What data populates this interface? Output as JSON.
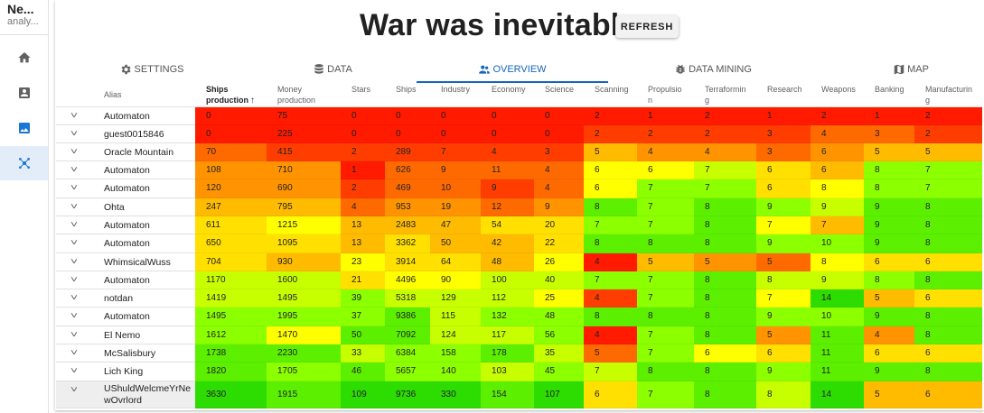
{
  "app": {
    "name": "Ne...",
    "subtitle": "analy..."
  },
  "sidebar": {
    "items": [
      {
        "name": "home",
        "icon": "home-icon",
        "active": false
      },
      {
        "name": "profile",
        "icon": "account-box-icon",
        "active": false
      },
      {
        "name": "gallery",
        "icon": "image-icon",
        "active": false
      },
      {
        "name": "analysis",
        "icon": "hub-icon",
        "active": true
      }
    ]
  },
  "header": {
    "title": "War was inevitable",
    "refresh_label": "REFRESH"
  },
  "tabs": [
    {
      "label": "SETTINGS",
      "icon": "gear-icon",
      "active": false
    },
    {
      "label": "DATA",
      "icon": "database-icon",
      "active": false
    },
    {
      "label": "OVERVIEW",
      "icon": "people-icon",
      "active": true
    },
    {
      "label": "DATA MINING",
      "icon": "bug-icon",
      "active": false
    },
    {
      "label": "MAP",
      "icon": "map-icon",
      "active": false
    }
  ],
  "colors": {
    "accent": "#1565c0",
    "scale": [
      "#ff1a00",
      "#ff3d00",
      "#ff6a00",
      "#ff9400",
      "#ffbb00",
      "#ffe000",
      "#ffff00",
      "#c8ff00",
      "#8cff00",
      "#5cf000",
      "#2ddc00"
    ]
  },
  "table": {
    "alias_header": "Alias",
    "columns": [
      {
        "key": "ships_production",
        "lines": [
          "Ships",
          "production"
        ],
        "sorted": "asc"
      },
      {
        "key": "money_production",
        "lines": [
          "Money",
          "production"
        ]
      },
      {
        "key": "stars",
        "lines": [
          "Stars"
        ]
      },
      {
        "key": "ships",
        "lines": [
          "Ships"
        ]
      },
      {
        "key": "industry",
        "lines": [
          "Industry"
        ]
      },
      {
        "key": "economy",
        "lines": [
          "Economy"
        ]
      },
      {
        "key": "science",
        "lines": [
          "Science"
        ]
      },
      {
        "key": "scanning",
        "lines": [
          "Scanning"
        ]
      },
      {
        "key": "propulsion",
        "lines": [
          "Propulsio",
          "n"
        ]
      },
      {
        "key": "terraforming",
        "lines": [
          "Terraformin",
          "g"
        ]
      },
      {
        "key": "research",
        "lines": [
          "Research"
        ]
      },
      {
        "key": "weapons",
        "lines": [
          "Weapons"
        ]
      },
      {
        "key": "banking",
        "lines": [
          "Banking"
        ]
      },
      {
        "key": "manufacturing",
        "lines": [
          "Manufacturin",
          "g"
        ]
      }
    ],
    "rows": [
      {
        "alias": "Automaton",
        "values": [
          0,
          75,
          0,
          0,
          0,
          0,
          0,
          2,
          1,
          2,
          1,
          2,
          1,
          2
        ]
      },
      {
        "alias": "guest0015846",
        "values": [
          0,
          225,
          0,
          0,
          0,
          0,
          0,
          2,
          2,
          2,
          3,
          4,
          3,
          2
        ]
      },
      {
        "alias": "Oracle Mountain",
        "values": [
          70,
          415,
          2,
          289,
          7,
          4,
          3,
          5,
          4,
          4,
          3,
          6,
          5,
          5
        ]
      },
      {
        "alias": "Automaton",
        "values": [
          108,
          710,
          1,
          626,
          9,
          11,
          4,
          6,
          6,
          7,
          6,
          6,
          8,
          7
        ]
      },
      {
        "alias": "Automaton",
        "values": [
          120,
          690,
          2,
          469,
          10,
          9,
          4,
          6,
          7,
          7,
          6,
          8,
          8,
          7
        ]
      },
      {
        "alias": "Ohta",
        "values": [
          247,
          795,
          4,
          953,
          19,
          12,
          9,
          8,
          7,
          8,
          9,
          9,
          9,
          8
        ]
      },
      {
        "alias": "Automaton",
        "values": [
          611,
          1215,
          13,
          2483,
          47,
          54,
          20,
          7,
          7,
          8,
          7,
          7,
          9,
          8
        ]
      },
      {
        "alias": "Automaton",
        "values": [
          650,
          1095,
          13,
          3362,
          50,
          42,
          22,
          8,
          8,
          8,
          9,
          10,
          9,
          8
        ]
      },
      {
        "alias": "WhimsicalWuss",
        "values": [
          704,
          930,
          23,
          3914,
          64,
          48,
          26,
          4,
          5,
          5,
          5,
          8,
          6,
          6
        ]
      },
      {
        "alias": "Automaton",
        "values": [
          1170,
          1600,
          21,
          4496,
          90,
          100,
          40,
          7,
          7,
          8,
          8,
          9,
          8,
          8
        ]
      },
      {
        "alias": "notdan",
        "values": [
          1419,
          1495,
          39,
          5318,
          129,
          112,
          25,
          4,
          7,
          8,
          7,
          14,
          5,
          6
        ]
      },
      {
        "alias": "Automaton",
        "values": [
          1495,
          1995,
          37,
          9386,
          115,
          132,
          48,
          8,
          8,
          8,
          9,
          10,
          9,
          8
        ]
      },
      {
        "alias": "El Nemo",
        "values": [
          1612,
          1470,
          50,
          7092,
          124,
          117,
          56,
          4,
          7,
          8,
          5,
          11,
          4,
          8
        ]
      },
      {
        "alias": "McSalisbury",
        "values": [
          1738,
          2230,
          33,
          6384,
          158,
          178,
          35,
          5,
          7,
          6,
          6,
          11,
          6,
          6
        ]
      },
      {
        "alias": "Lich King",
        "values": [
          1820,
          1705,
          46,
          5657,
          140,
          103,
          45,
          7,
          8,
          8,
          9,
          11,
          9,
          8
        ]
      },
      {
        "alias": "UShuldWelcmeYrNewOvrlord",
        "values": [
          3630,
          1915,
          109,
          9736,
          330,
          154,
          107,
          6,
          7,
          8,
          8,
          14,
          5,
          6
        ]
      }
    ],
    "cell_levels": [
      [
        0,
        0,
        0,
        0,
        0,
        0,
        0,
        0,
        0,
        0,
        0,
        0,
        0,
        0
      ],
      [
        0,
        0,
        0,
        0,
        0,
        0,
        0,
        1,
        1,
        1,
        1,
        2,
        2,
        1
      ],
      [
        2,
        1,
        1,
        1,
        1,
        1,
        1,
        4,
        3,
        3,
        2,
        3,
        4,
        4
      ],
      [
        3,
        3,
        0,
        2,
        2,
        2,
        2,
        6,
        6,
        7,
        5,
        4,
        8,
        8
      ],
      [
        3,
        3,
        1,
        2,
        2,
        1,
        2,
        6,
        8,
        8,
        5,
        6,
        8,
        8
      ],
      [
        4,
        4,
        2,
        3,
        3,
        2,
        3,
        9,
        8,
        9,
        8,
        7,
        9,
        9
      ],
      [
        5,
        6,
        4,
        4,
        4,
        5,
        5,
        8,
        8,
        9,
        6,
        4,
        9,
        9
      ],
      [
        5,
        5,
        4,
        5,
        4,
        4,
        5,
        9,
        9,
        9,
        8,
        8,
        9,
        9
      ],
      [
        5,
        4,
        6,
        5,
        5,
        4,
        6,
        0,
        4,
        3,
        2,
        6,
        5,
        5
      ],
      [
        7,
        7,
        5,
        6,
        6,
        7,
        7,
        8,
        8,
        9,
        7,
        7,
        8,
        9
      ],
      [
        7,
        7,
        8,
        7,
        7,
        7,
        6,
        1,
        8,
        9,
        6,
        10,
        4,
        5
      ],
      [
        8,
        8,
        8,
        9,
        7,
        8,
        8,
        9,
        9,
        9,
        8,
        8,
        9,
        9
      ],
      [
        8,
        6,
        9,
        9,
        7,
        7,
        8,
        0,
        8,
        9,
        3,
        9,
        3,
        9
      ],
      [
        9,
        9,
        7,
        8,
        8,
        9,
        7,
        2,
        8,
        6,
        5,
        9,
        5,
        5
      ],
      [
        9,
        8,
        9,
        8,
        8,
        7,
        8,
        7,
        9,
        9,
        8,
        9,
        9,
        9
      ],
      [
        10,
        9,
        10,
        10,
        10,
        9,
        10,
        5,
        8,
        9,
        7,
        10,
        4,
        4
      ]
    ]
  }
}
